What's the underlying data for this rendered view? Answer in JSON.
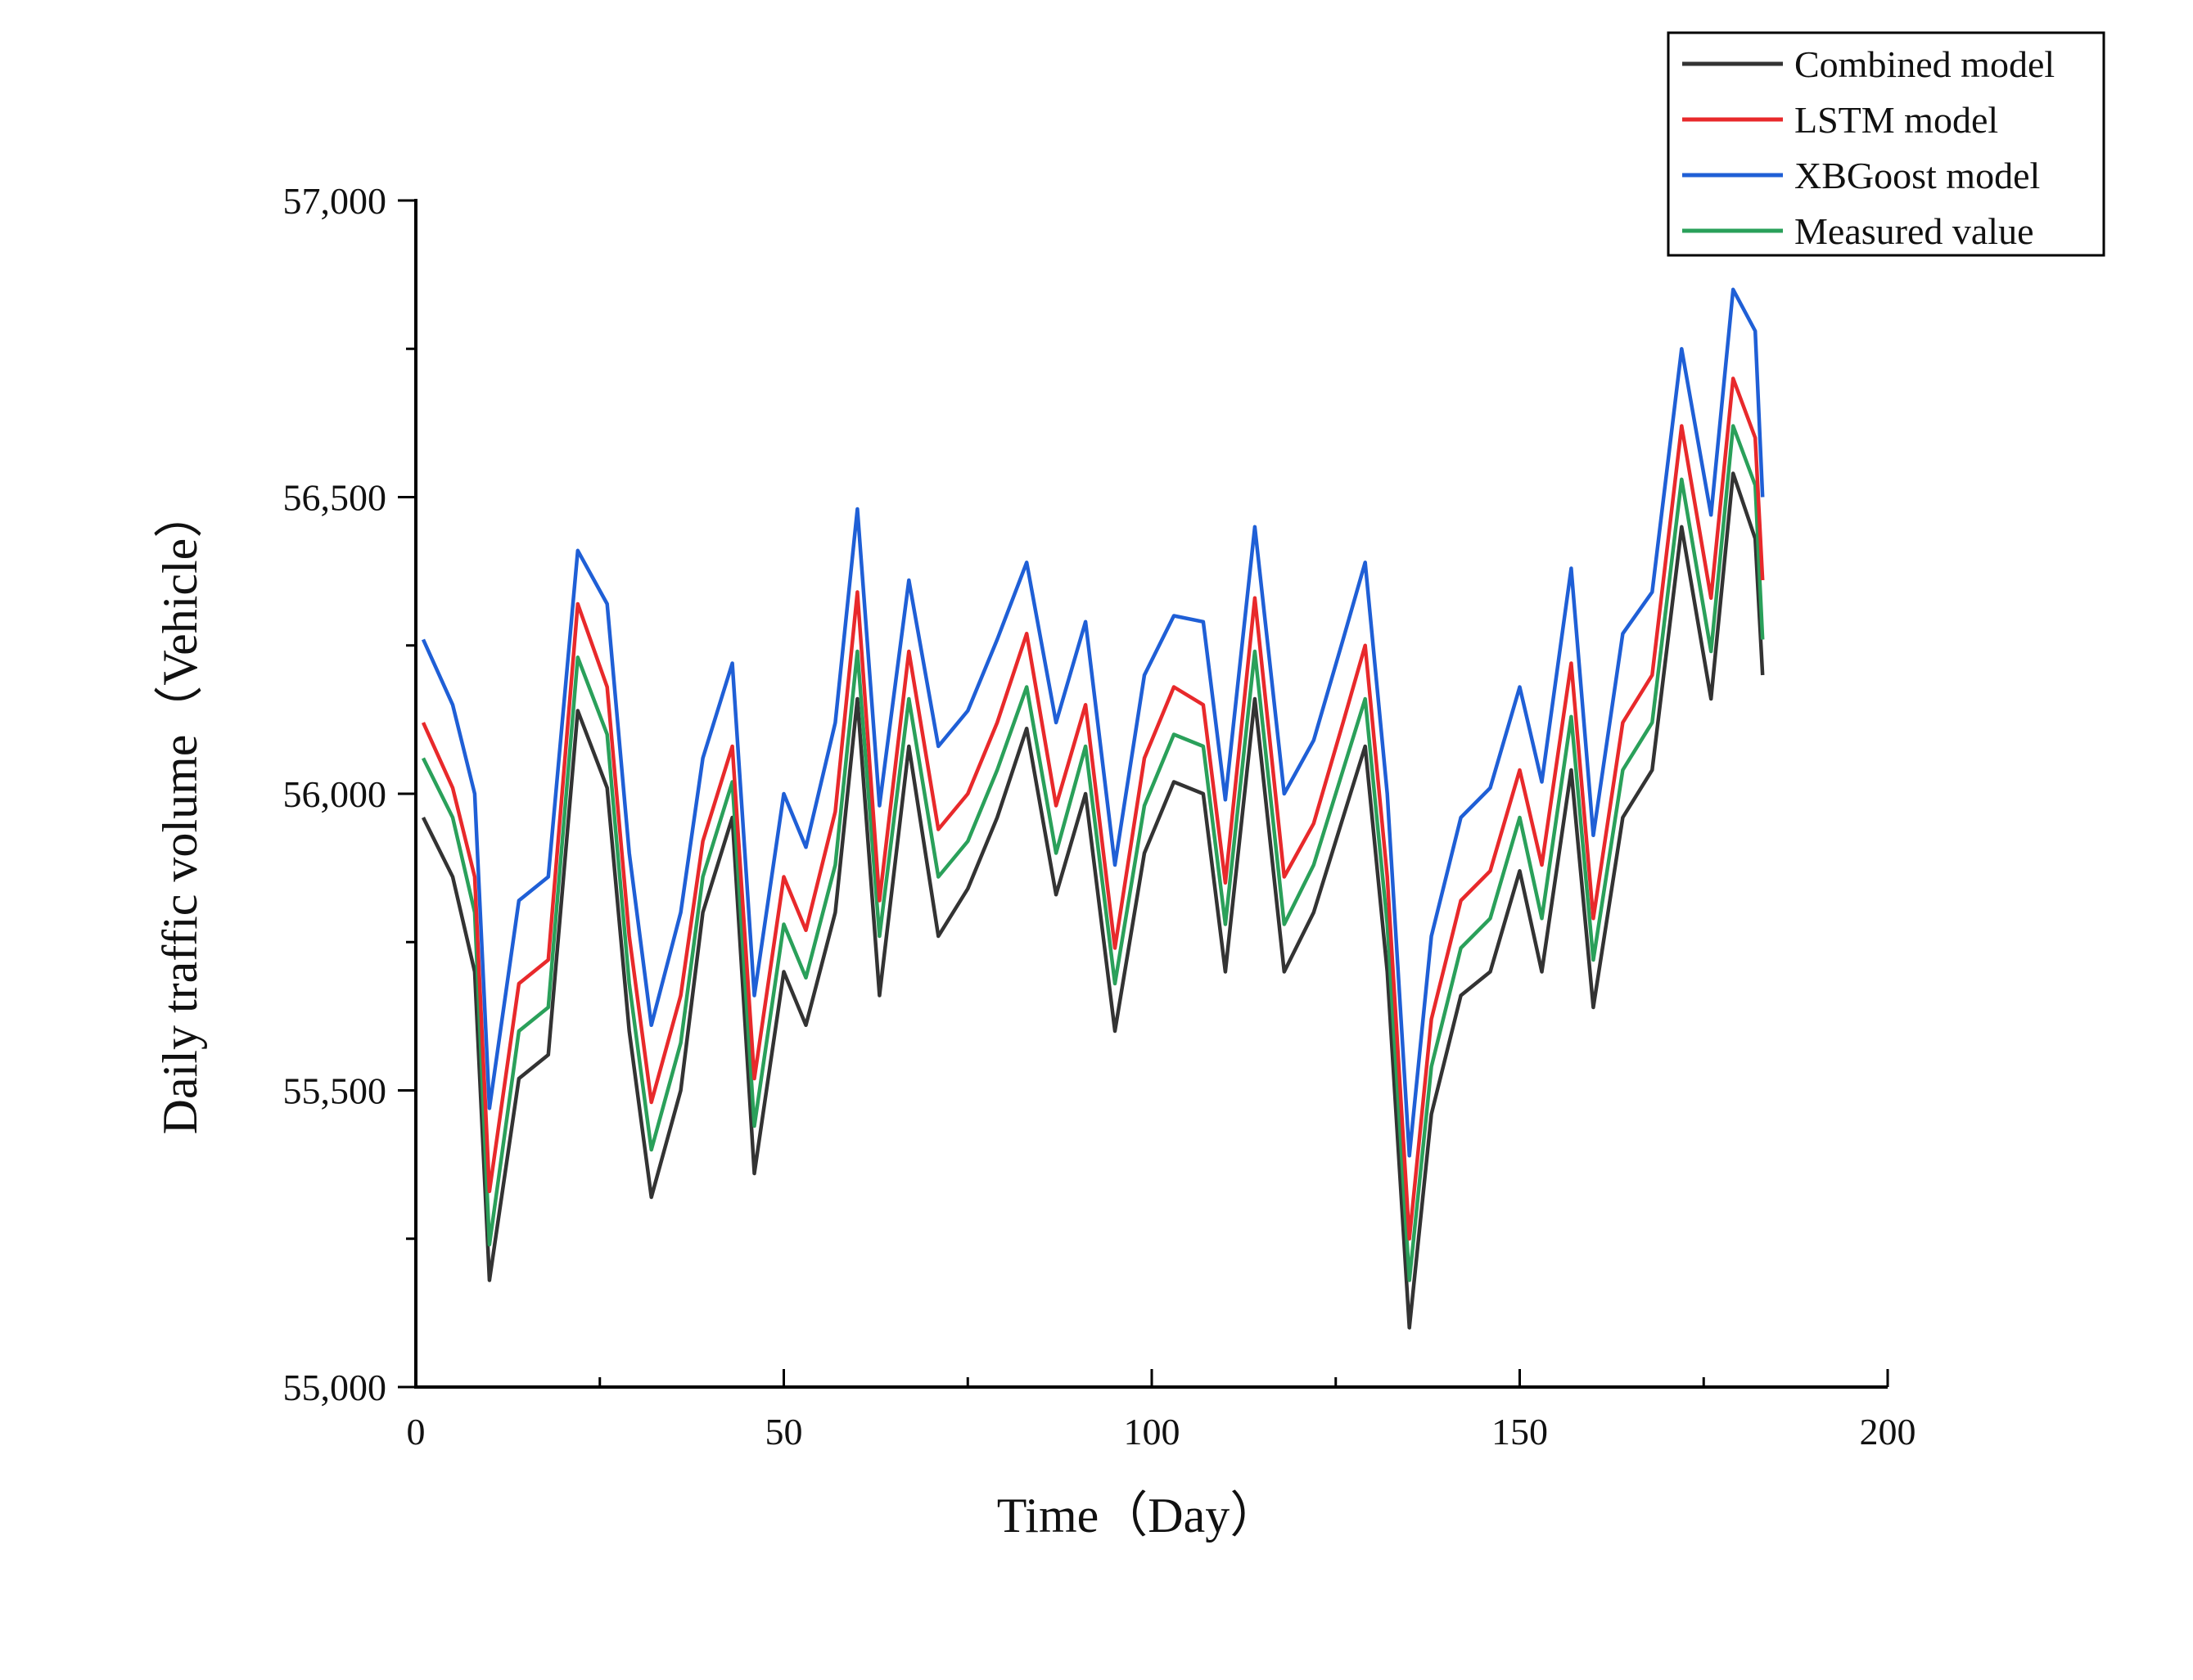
{
  "chart_data": {
    "type": "line",
    "title": "",
    "xlabel": "Time（Day）",
    "ylabel": "Daily traffic volume（Vehicle）",
    "xlim": [
      0,
      200
    ],
    "ylim": [
      55000,
      57000
    ],
    "x_ticks": [
      0,
      50,
      100,
      150,
      200
    ],
    "x_tick_labels": [
      "0",
      "50",
      "100",
      "150",
      "200"
    ],
    "y_ticks": [
      55000,
      55500,
      56000,
      56500,
      57000
    ],
    "y_tick_labels": [
      "55,000",
      "55,500",
      "56,000",
      "56,500",
      "57,000"
    ],
    "legend_position": "top-right",
    "grid": false,
    "x": [
      1,
      5,
      8,
      10,
      14,
      18,
      22,
      26,
      29,
      32,
      36,
      39,
      43,
      46,
      50,
      53,
      57,
      60,
      63,
      67,
      71,
      75,
      79,
      83,
      87,
      91,
      95,
      99,
      103,
      107,
      110,
      114,
      118,
      122,
      126,
      129,
      132,
      135,
      138,
      142,
      146,
      150,
      153,
      157,
      160,
      164,
      168,
      172,
      176,
      179,
      182,
      183
    ],
    "series": [
      {
        "name": "Combined model",
        "color": "#333333",
        "values": [
          55960,
          55860,
          55700,
          55180,
          55520,
          55560,
          56140,
          56010,
          55600,
          55320,
          55500,
          55800,
          55960,
          55360,
          55700,
          55610,
          55800,
          56160,
          55660,
          56080,
          55760,
          55840,
          55960,
          56110,
          55830,
          56000,
          55600,
          55900,
          56020,
          56000,
          55700,
          56160,
          55700,
          55800,
          55960,
          56080,
          55700,
          55100,
          55460,
          55660,
          55700,
          55870,
          55700,
          56040,
          55640,
          55960,
          56040,
          56450,
          56160,
          56540,
          56430,
          56200
        ]
      },
      {
        "name": "LSTM model",
        "color": "#e8292b",
        "values": [
          56120,
          56010,
          55860,
          55330,
          55680,
          55720,
          56320,
          56180,
          55760,
          55480,
          55660,
          55920,
          56080,
          55520,
          55860,
          55770,
          55970,
          56340,
          55820,
          56240,
          55940,
          56000,
          56120,
          56270,
          55980,
          56150,
          55740,
          56060,
          56180,
          56150,
          55850,
          56330,
          55860,
          55950,
          56120,
          56250,
          55860,
          55250,
          55620,
          55820,
          55870,
          56040,
          55880,
          56220,
          55790,
          56120,
          56200,
          56620,
          56330,
          56700,
          56600,
          56360
        ]
      },
      {
        "name": "XBGoost model",
        "color": "#1f5fd6",
        "values": [
          56260,
          56150,
          56000,
          55470,
          55820,
          55860,
          56410,
          56320,
          55900,
          55610,
          55800,
          56060,
          56220,
          55660,
          56000,
          55910,
          56120,
          56480,
          55980,
          56360,
          56080,
          56140,
          56260,
          56390,
          56120,
          56290,
          55880,
          56200,
          56300,
          56290,
          55990,
          56450,
          56000,
          56090,
          56260,
          56390,
          56000,
          55390,
          55760,
          55960,
          56010,
          56180,
          56020,
          56380,
          55930,
          56270,
          56340,
          56750,
          56470,
          56850,
          56780,
          56500
        ]
      },
      {
        "name": "Measured value",
        "color": "#2aa05a",
        "values": [
          56060,
          55960,
          55800,
          55240,
          55600,
          55640,
          56230,
          56100,
          55680,
          55400,
          55580,
          55860,
          56020,
          55440,
          55780,
          55690,
          55880,
          56240,
          55760,
          56160,
          55860,
          55920,
          56040,
          56180,
          55900,
          56080,
          55680,
          55980,
          56100,
          56080,
          55780,
          56240,
          55780,
          55880,
          56040,
          56160,
          55780,
          55180,
          55540,
          55740,
          55790,
          55960,
          55790,
          56130,
          55720,
          56040,
          56120,
          56530,
          56240,
          56620,
          56520,
          56260
        ]
      }
    ]
  }
}
